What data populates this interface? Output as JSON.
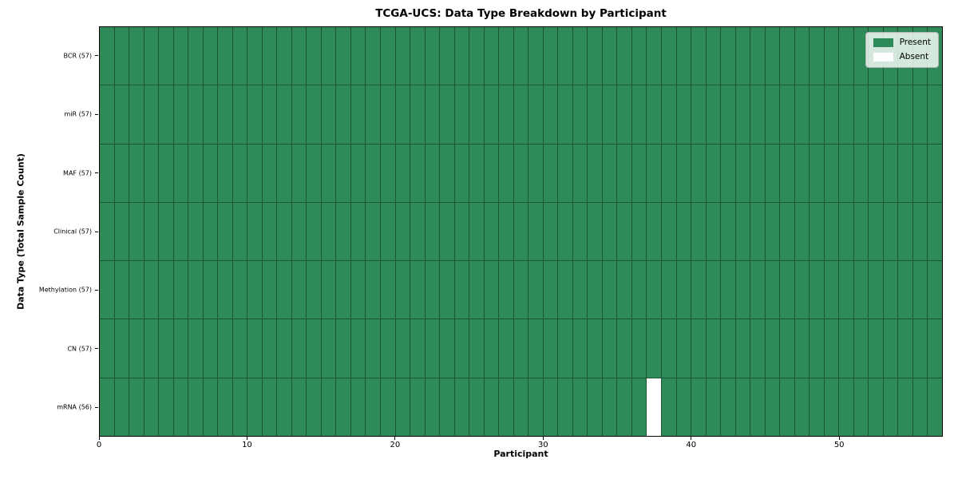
{
  "chart_data": {
    "type": "heatmap",
    "title": "TCGA-UCS: Data Type Breakdown by Participant",
    "xlabel": "Participant",
    "ylabel": "Data Type (Total Sample Count)",
    "x_ticks": [
      0,
      10,
      20,
      30,
      40,
      50
    ],
    "xlim": [
      0,
      57
    ],
    "n_participants": 57,
    "rows": [
      {
        "label": "BCR (57)",
        "data_type": "BCR",
        "total": 57,
        "absent_participants": []
      },
      {
        "label": "miR (57)",
        "data_type": "miR",
        "total": 57,
        "absent_participants": []
      },
      {
        "label": "MAF (57)",
        "data_type": "MAF",
        "total": 57,
        "absent_participants": []
      },
      {
        "label": "Clinical (57)",
        "data_type": "Clinical",
        "total": 57,
        "absent_participants": []
      },
      {
        "label": "Methylation (57)",
        "data_type": "Methylation",
        "total": 57,
        "absent_participants": []
      },
      {
        "label": "CN (57)",
        "data_type": "CN",
        "total": 57,
        "absent_participants": []
      },
      {
        "label": "mRNA (56)",
        "data_type": "mRNA",
        "total": 56,
        "absent_participants": [
          37
        ]
      }
    ],
    "legend": [
      {
        "label": "Present",
        "color": "#2e8b57"
      },
      {
        "label": "Absent",
        "color": "#ffffff"
      }
    ],
    "colors": {
      "present": "#2e8b57",
      "absent": "#ffffff",
      "cell_border": "#1f5336",
      "plot_border": "#000000"
    },
    "legend_position": "upper right",
    "grid": "on"
  }
}
